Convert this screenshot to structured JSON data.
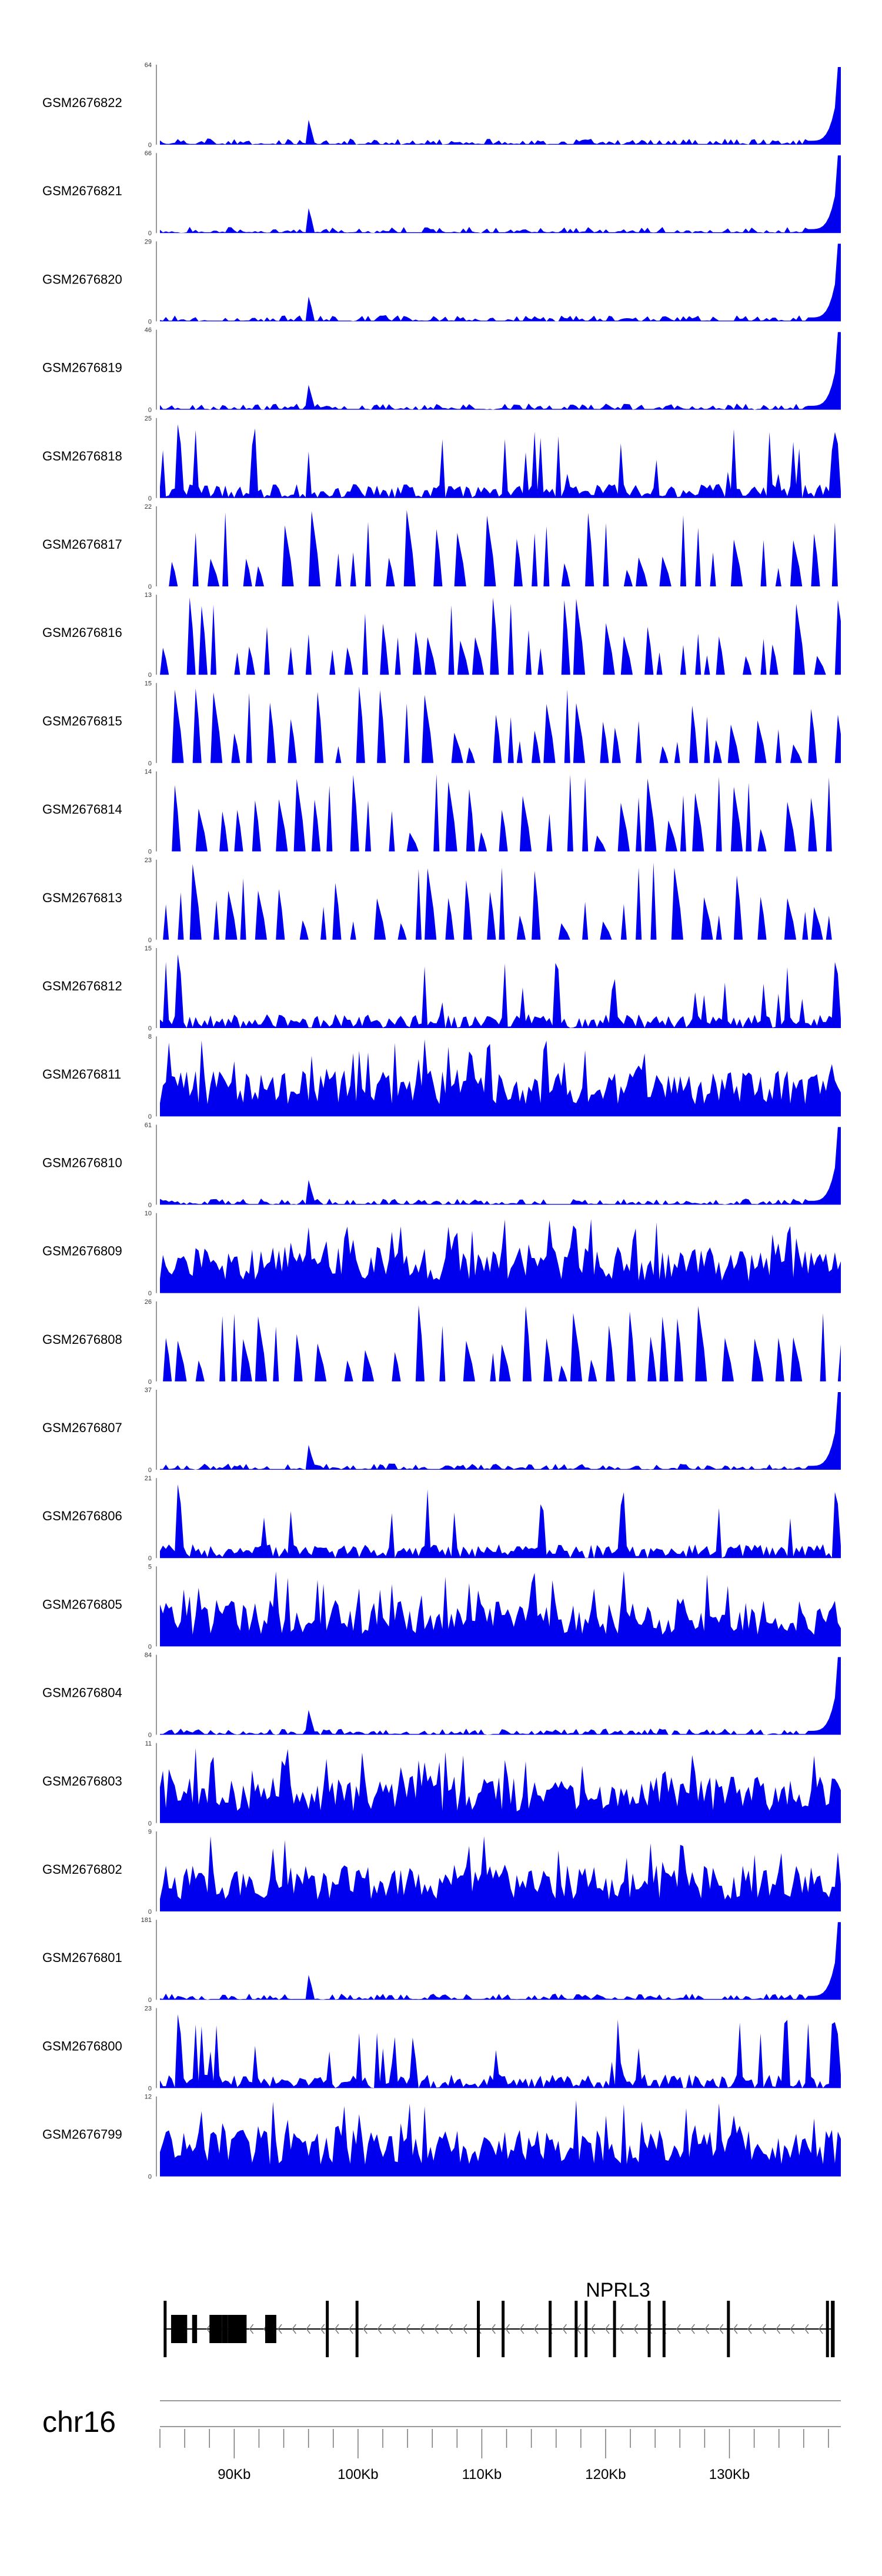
{
  "chart_data": {
    "type": "area",
    "chromosome": "chr16",
    "gene": {
      "name": "NPRL3",
      "strand": "-",
      "exons_kb": [
        [
          84.3,
          84.5
        ],
        [
          84.9,
          86.2
        ],
        [
          86.6,
          87.0
        ],
        [
          88.0,
          89.0
        ],
        [
          89.0,
          89.5
        ],
        [
          89.5,
          91.0
        ],
        [
          92.5,
          93.4
        ],
        [
          97.4,
          97.6
        ],
        [
          99.8,
          100.0
        ],
        [
          109.6,
          109.8
        ],
        [
          111.6,
          111.8
        ],
        [
          115.4,
          115.6
        ],
        [
          117.5,
          117.7
        ],
        [
          118.3,
          118.5
        ],
        [
          120.6,
          120.8
        ],
        [
          123.4,
          123.6
        ],
        [
          124.6,
          124.8
        ],
        [
          129.8,
          130.0
        ],
        [
          137.8,
          138.0
        ],
        [
          138.2,
          138.5
        ]
      ]
    },
    "x_axis": {
      "unit": "kb",
      "range": [
        84.0,
        139.0
      ],
      "major_ticks": [
        90,
        100,
        110,
        120,
        130
      ],
      "tick_labels": [
        "90Kb",
        "100Kb",
        "110Kb",
        "120Kb",
        "130Kb"
      ],
      "minor_tick_step": 2
    },
    "tracks": [
      {
        "name": "GSM2676822",
        "ymax": 64,
        "ymin": 0,
        "profile": "peak-right",
        "seed": 22
      },
      {
        "name": "GSM2676821",
        "ymax": 66,
        "ymin": 0,
        "profile": "peak-right",
        "seed": 21
      },
      {
        "name": "GSM2676820",
        "ymax": 29,
        "ymin": 0,
        "profile": "peak-right",
        "seed": 20
      },
      {
        "name": "GSM2676819",
        "ymax": 46,
        "ymin": 0,
        "profile": "peak-right",
        "seed": 19
      },
      {
        "name": "GSM2676818",
        "ymax": 25,
        "ymin": 0,
        "profile": "dense-spiky",
        "seed": 18
      },
      {
        "name": "GSM2676817",
        "ymax": 22,
        "ymin": 0,
        "profile": "sparse-triangles",
        "seed": 17
      },
      {
        "name": "GSM2676816",
        "ymax": 13,
        "ymin": 0,
        "profile": "sparse-triangles",
        "seed": 16
      },
      {
        "name": "GSM2676815",
        "ymax": 15,
        "ymin": 0,
        "profile": "sparse-triangles",
        "seed": 15
      },
      {
        "name": "GSM2676814",
        "ymax": 14,
        "ymin": 0,
        "profile": "sparse-triangles",
        "seed": 14
      },
      {
        "name": "GSM2676813",
        "ymax": 23,
        "ymin": 0,
        "profile": "sparse-triangles",
        "seed": 13
      },
      {
        "name": "GSM2676812",
        "ymax": 15,
        "ymin": 0,
        "profile": "dense-spiky",
        "seed": 12
      },
      {
        "name": "GSM2676811",
        "ymax": 8,
        "ymin": 0,
        "profile": "dense-high",
        "seed": 11
      },
      {
        "name": "GSM2676810",
        "ymax": 61,
        "ymin": 0,
        "profile": "peak-right",
        "seed": 10
      },
      {
        "name": "GSM2676809",
        "ymax": 10,
        "ymin": 0,
        "profile": "dense-high",
        "seed": 9
      },
      {
        "name": "GSM2676808",
        "ymax": 26,
        "ymin": 0,
        "profile": "sparse-triangles",
        "seed": 8
      },
      {
        "name": "GSM2676807",
        "ymax": 37,
        "ymin": 0,
        "profile": "peak-right",
        "seed": 7
      },
      {
        "name": "GSM2676806",
        "ymax": 21,
        "ymin": 0,
        "profile": "dense-spiky",
        "seed": 6
      },
      {
        "name": "GSM2676805",
        "ymax": 5,
        "ymin": 0,
        "profile": "dense-high",
        "seed": 5
      },
      {
        "name": "GSM2676804",
        "ymax": 84,
        "ymin": 0,
        "profile": "peak-right",
        "seed": 4
      },
      {
        "name": "GSM2676803",
        "ymax": 11,
        "ymin": 0,
        "profile": "dense-high",
        "seed": 3
      },
      {
        "name": "GSM2676802",
        "ymax": 9,
        "ymin": 0,
        "profile": "dense-high",
        "seed": 2
      },
      {
        "name": "GSM2676801",
        "ymax": 181,
        "ymin": 0,
        "profile": "peak-right",
        "seed": 1
      },
      {
        "name": "GSM2676800",
        "ymax": 23,
        "ymin": 0,
        "profile": "dense-spiky",
        "seed": 100
      },
      {
        "name": "GSM2676799",
        "ymax": 12,
        "ymin": 0,
        "profile": "dense-high",
        "seed": 99
      }
    ],
    "colors": {
      "fill": "#0000ee",
      "axis": "#555555",
      "label": "#000000",
      "gene": "#000000",
      "chrom_line": "#999999"
    }
  }
}
